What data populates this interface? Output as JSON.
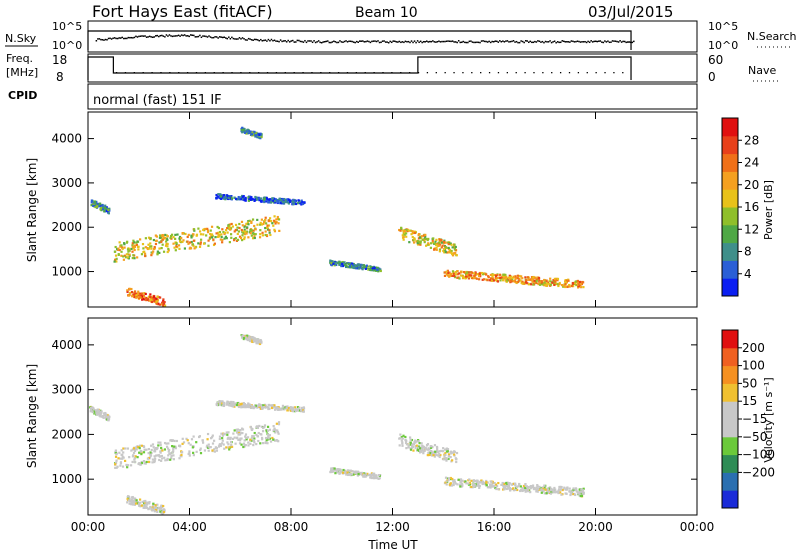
{
  "header": {
    "title": "Fort Hays East (fitACF)",
    "beam": "Beam 10",
    "date": "03/Jul/2015"
  },
  "panels": {
    "sky": {
      "left_label": "N.Sky",
      "left_ticks": [
        "10^5",
        "10^0"
      ],
      "right_ticks": [
        "10^5",
        "10^0"
      ],
      "right_label": "N.Search"
    },
    "freq": {
      "left_label_1": "Freq.",
      "left_label_2": "[MHz]",
      "left_ticks": [
        "18",
        "8"
      ],
      "right_ticks": [
        "60",
        "0"
      ],
      "right_label": "Nave"
    },
    "cpid": {
      "label": "CPID",
      "value": "normal (fast) 151 IF"
    }
  },
  "chart_data": [
    {
      "type": "heatmap",
      "quantity": "power",
      "ylabel": "Slant Range [km]",
      "xlabel": "",
      "xlim": [
        0,
        24
      ],
      "ylim": [
        200,
        4600
      ],
      "yticks": [
        "1000",
        "2000",
        "3000",
        "4000"
      ],
      "colorbar": {
        "label": "Power [dB]",
        "ticks": [
          "4",
          "8",
          "12",
          "16",
          "20",
          "24",
          "28"
        ],
        "colors": [
          "#0b1ff2",
          "#2a5fd6",
          "#3f8f8a",
          "#4fa845",
          "#8fbf2a",
          "#e8c21a",
          "#f5a020",
          "#f07018",
          "#e8401a",
          "#e01010"
        ]
      },
      "features": [
        {
          "t0": 0.0,
          "t1": 0.8,
          "r0": 2300,
          "r1": 2700,
          "level": 3
        },
        {
          "t0": 1.0,
          "t1": 7.5,
          "r0": 1150,
          "r1": 2400,
          "level": 6
        },
        {
          "t0": 5.0,
          "t1": 8.5,
          "r0": 2500,
          "r1": 2800,
          "level": 2
        },
        {
          "t0": 12.2,
          "t1": 14.5,
          "r0": 1300,
          "r1": 2100,
          "level": 6
        },
        {
          "t0": 14.0,
          "t1": 19.5,
          "r0": 600,
          "r1": 1100,
          "level": 7
        },
        {
          "t0": 1.5,
          "t1": 3.0,
          "r0": 200,
          "r1": 700,
          "level": 8
        },
        {
          "t0": 6.0,
          "t1": 6.8,
          "r0": 4000,
          "r1": 4300,
          "level": 3
        },
        {
          "t0": 9.5,
          "t1": 11.5,
          "r0": 1000,
          "r1": 1300,
          "level": 3
        }
      ]
    },
    {
      "type": "heatmap",
      "quantity": "velocity",
      "ylabel": "Slant Range [km]",
      "xlabel": "Time UT",
      "xlim": [
        0,
        24
      ],
      "ylim": [
        200,
        4600
      ],
      "xticks": [
        "00:00",
        "04:00",
        "08:00",
        "12:00",
        "16:00",
        "20:00",
        "00:00"
      ],
      "yticks": [
        "1000",
        "2000",
        "3000",
        "4000"
      ],
      "colorbar": {
        "label": "Velocity [m s⁻¹]",
        "ticks": [
          "200",
          "100",
          "50",
          "15",
          "−15",
          "−50",
          "−100",
          "−200"
        ],
        "colors": [
          "#1a2bd8",
          "#2a6fb0",
          "#2e8c55",
          "#6bc93a",
          "#c8c8c8",
          "#c8c8c8",
          "#f0c030",
          "#f59020",
          "#f06020",
          "#e01010"
        ]
      }
    }
  ]
}
